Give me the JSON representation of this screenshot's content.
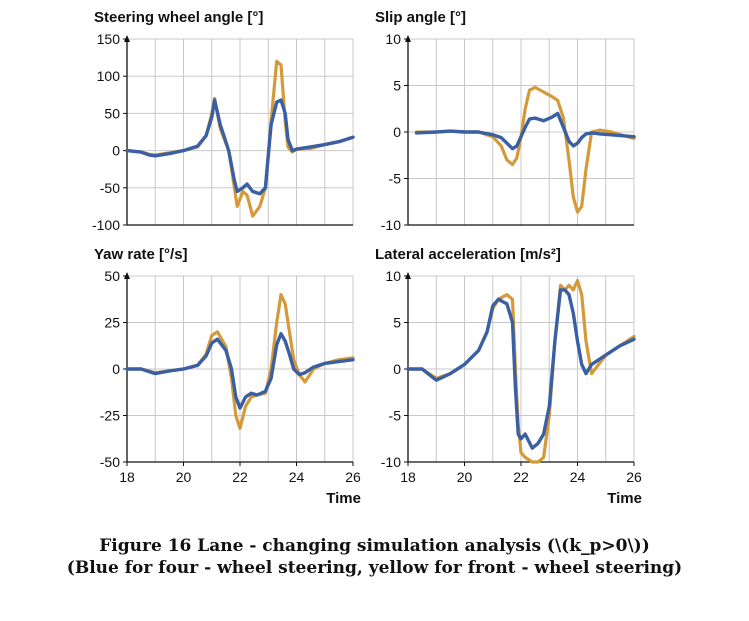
{
  "colors": {
    "four_wheel": "#3a5fa3",
    "front_wheel": "#d49a3a",
    "grid": "#c8c8c8",
    "axis": "#111111"
  },
  "caption": {
    "line1": "Figure 16 Lane - changing simulation analysis (\\(k_p>0\\))",
    "line2": "(Blue for four - wheel steering, yellow for front - wheel steering)"
  },
  "chart_data": [
    {
      "type": "line",
      "title": "Steering wheel angle [°]",
      "xlabel": "",
      "xlim": [
        18,
        26
      ],
      "ylim": [
        -100,
        150
      ],
      "xticks": [],
      "yticks": [
        150,
        100,
        50,
        0,
        -50,
        -100
      ],
      "grid": true,
      "series": [
        {
          "color": "#d49a3a",
          "x": [
            18,
            18.5,
            18.8,
            19,
            19.5,
            20,
            20.5,
            20.8,
            21,
            21.1,
            21.3,
            21.6,
            21.8,
            21.9,
            22.1,
            22.25,
            22.45,
            22.7,
            22.9,
            23.1,
            23.3,
            23.45,
            23.6,
            23.7,
            23.85,
            24,
            24.5,
            25,
            25.5,
            26
          ],
          "y": [
            0,
            -2,
            -5,
            -6,
            -3,
            0,
            5,
            20,
            50,
            70,
            30,
            0,
            -50,
            -75,
            -55,
            -60,
            -88,
            -75,
            -50,
            40,
            120,
            115,
            40,
            5,
            -2,
            2,
            3,
            8,
            12,
            18
          ]
        },
        {
          "color": "#3a5fa3",
          "x": [
            18,
            18.5,
            18.8,
            19,
            19.5,
            20,
            20.5,
            20.8,
            21,
            21.1,
            21.3,
            21.6,
            21.8,
            21.9,
            22.1,
            22.25,
            22.45,
            22.7,
            22.9,
            23.1,
            23.3,
            23.45,
            23.6,
            23.7,
            23.85,
            24,
            24.5,
            25,
            25.5,
            26
          ],
          "y": [
            0,
            -2,
            -6,
            -7,
            -4,
            0,
            6,
            20,
            45,
            68,
            35,
            0,
            -40,
            -55,
            -50,
            -45,
            -55,
            -58,
            -50,
            35,
            65,
            68,
            50,
            15,
            0,
            2,
            5,
            8,
            12,
            18
          ]
        }
      ]
    },
    {
      "type": "line",
      "title": "Slip angle [°]",
      "xlabel": "",
      "xlim": [
        18,
        26
      ],
      "ylim": [
        -10,
        10
      ],
      "xticks": [],
      "yticks": [
        10,
        5,
        0,
        -5,
        -10
      ],
      "grid": true,
      "series": [
        {
          "color": "#d49a3a",
          "x": [
            18.3,
            19,
            19.5,
            20,
            20.5,
            21,
            21.3,
            21.5,
            21.7,
            21.85,
            22,
            22.15,
            22.3,
            22.5,
            22.8,
            23.1,
            23.3,
            23.5,
            23.7,
            23.85,
            24,
            24.15,
            24.3,
            24.5,
            24.8,
            25.2,
            26
          ],
          "y": [
            0,
            0,
            0.1,
            0,
            0,
            -0.5,
            -1.5,
            -3,
            -3.5,
            -2.8,
            -0.5,
            2.5,
            4.5,
            4.8,
            4.3,
            3.8,
            3.4,
            1.5,
            -3,
            -7,
            -8.6,
            -8,
            -4,
            0,
            0.2,
            0,
            -0.7
          ]
        },
        {
          "color": "#3a5fa3",
          "x": [
            18.3,
            19,
            19.5,
            20,
            20.5,
            21,
            21.3,
            21.5,
            21.7,
            21.85,
            22,
            22.15,
            22.3,
            22.5,
            22.8,
            23.1,
            23.3,
            23.5,
            23.7,
            23.85,
            24,
            24.15,
            24.3,
            24.5,
            24.8,
            25.2,
            26
          ],
          "y": [
            -0.1,
            0,
            0.1,
            0,
            0,
            -0.3,
            -0.6,
            -1.2,
            -1.8,
            -1.5,
            -0.5,
            0.5,
            1.4,
            1.5,
            1.2,
            1.6,
            2,
            0.5,
            -1,
            -1.5,
            -1.2,
            -0.6,
            -0.2,
            -0.1,
            -0.2,
            -0.3,
            -0.5
          ]
        }
      ]
    },
    {
      "type": "line",
      "title": "Yaw rate [°/s]",
      "xlabel": "Time",
      "xlim": [
        18,
        26
      ],
      "ylim": [
        -50,
        50
      ],
      "xticks": [
        18,
        20,
        22,
        24,
        26
      ],
      "yticks": [
        50,
        25,
        0,
        -25,
        -50
      ],
      "grid": true,
      "series": [
        {
          "color": "#d49a3a",
          "x": [
            18,
            18.5,
            19,
            19.5,
            20,
            20.5,
            20.8,
            21,
            21.2,
            21.5,
            21.7,
            21.85,
            22,
            22.2,
            22.4,
            22.6,
            22.9,
            23.1,
            23.3,
            23.45,
            23.6,
            23.75,
            23.9,
            24.1,
            24.3,
            24.6,
            25,
            25.5,
            26
          ],
          "y": [
            0,
            0,
            -2,
            -1,
            0,
            2,
            8,
            18,
            20,
            12,
            -5,
            -25,
            -32,
            -20,
            -15,
            -14,
            -13,
            0,
            25,
            40,
            35,
            20,
            5,
            -3,
            -7,
            0,
            3,
            5,
            6
          ]
        },
        {
          "color": "#3a5fa3",
          "x": [
            18,
            18.5,
            19,
            19.5,
            20,
            20.5,
            20.8,
            21,
            21.2,
            21.5,
            21.7,
            21.85,
            22,
            22.2,
            22.4,
            22.6,
            22.9,
            23.1,
            23.3,
            23.45,
            23.6,
            23.75,
            23.9,
            24.1,
            24.3,
            24.6,
            25,
            25.5,
            26
          ],
          "y": [
            0,
            0,
            -2.5,
            -1,
            0,
            2,
            7,
            14,
            16,
            10,
            0,
            -15,
            -21,
            -15,
            -13,
            -14,
            -12,
            -5,
            13,
            19,
            15,
            8,
            0,
            -3,
            -2,
            1,
            3,
            4,
            5
          ]
        }
      ]
    },
    {
      "type": "line",
      "title": "Lateral acceleration [m/s²]",
      "xlabel": "Time",
      "xlim": [
        18,
        26
      ],
      "ylim": [
        -10,
        10
      ],
      "xticks": [
        18,
        20,
        22,
        24,
        26
      ],
      "yticks": [
        10,
        5,
        0,
        -5,
        -10
      ],
      "grid": true,
      "series": [
        {
          "color": "#d49a3a",
          "x": [
            18,
            18.5,
            19,
            19.5,
            20,
            20.5,
            20.8,
            21,
            21.2,
            21.5,
            21.7,
            21.8,
            21.9,
            22,
            22.15,
            22.4,
            22.6,
            22.8,
            23,
            23.2,
            23.4,
            23.55,
            23.7,
            23.85,
            24,
            24.15,
            24.3,
            24.5,
            25,
            25.5,
            26
          ],
          "y": [
            0,
            0,
            -1,
            -0.5,
            0.5,
            2,
            4,
            6.5,
            7.5,
            8,
            7.5,
            0,
            -6,
            -9,
            -9.5,
            -10,
            -10,
            -9.5,
            -5,
            3,
            9,
            8.5,
            9,
            8.5,
            9.5,
            8,
            3,
            -0.5,
            1.5,
            2.5,
            3.5
          ]
        },
        {
          "color": "#3a5fa3",
          "x": [
            18,
            18.5,
            19,
            19.5,
            20,
            20.5,
            20.8,
            21,
            21.2,
            21.5,
            21.7,
            21.8,
            21.9,
            22,
            22.15,
            22.4,
            22.6,
            22.8,
            23,
            23.2,
            23.4,
            23.55,
            23.7,
            23.85,
            24,
            24.15,
            24.3,
            24.5,
            25,
            25.5,
            26
          ],
          "y": [
            0,
            0,
            -1.2,
            -0.5,
            0.5,
            2,
            4,
            6.8,
            7.5,
            7,
            5,
            -2,
            -7,
            -7.5,
            -7,
            -8.5,
            -8,
            -7,
            -4,
            3,
            8.5,
            8.5,
            8,
            6,
            3,
            0.5,
            -0.5,
            0.5,
            1.5,
            2.5,
            3.2
          ]
        }
      ]
    }
  ]
}
